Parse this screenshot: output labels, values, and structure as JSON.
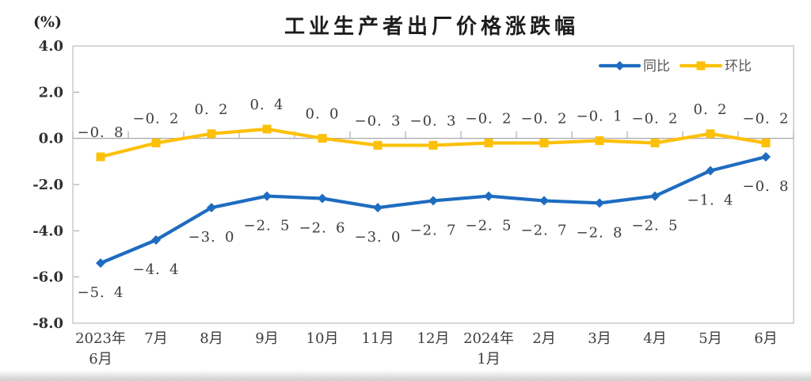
{
  "chart_data": {
    "type": "line",
    "title": "工业生产者出厂价格涨跌幅",
    "unit_label": "(%)",
    "categories": [
      [
        "2023年",
        "6月"
      ],
      [
        "7月"
      ],
      [
        "8月"
      ],
      [
        "9月"
      ],
      [
        "10月"
      ],
      [
        "11月"
      ],
      [
        "12月"
      ],
      [
        "2024年",
        "1月"
      ],
      [
        "2月"
      ],
      [
        "3月"
      ],
      [
        "4月"
      ],
      [
        "5月"
      ],
      [
        "6月"
      ]
    ],
    "series": [
      {
        "key": "yoy",
        "name": "同比",
        "color": "#1e6cc0",
        "marker": "diamond",
        "label_position": "below",
        "values": [
          -5.4,
          -4.4,
          -3.0,
          -2.5,
          -2.6,
          -3.0,
          -2.7,
          -2.5,
          -2.7,
          -2.8,
          -2.5,
          -1.4,
          -0.8
        ]
      },
      {
        "key": "mom",
        "name": "环比",
        "color": "#fdc008",
        "marker": "square",
        "label_position": "above",
        "values": [
          -0.8,
          -0.2,
          0.2,
          0.4,
          0.0,
          -0.3,
          -0.3,
          -0.2,
          -0.2,
          -0.1,
          -0.2,
          0.2,
          -0.2
        ]
      }
    ],
    "ylim": [
      -8.0,
      4.0
    ],
    "yticks": [
      4.0,
      2.0,
      0.0,
      -2.0,
      -4.0,
      -6.0,
      -8.0
    ],
    "grid": "zero-line-only",
    "legend_position": "top-right",
    "colors": {
      "frame": "#bfbfbf",
      "zero_line": "#9e9e9e",
      "tick": "#9e9e9e"
    }
  }
}
